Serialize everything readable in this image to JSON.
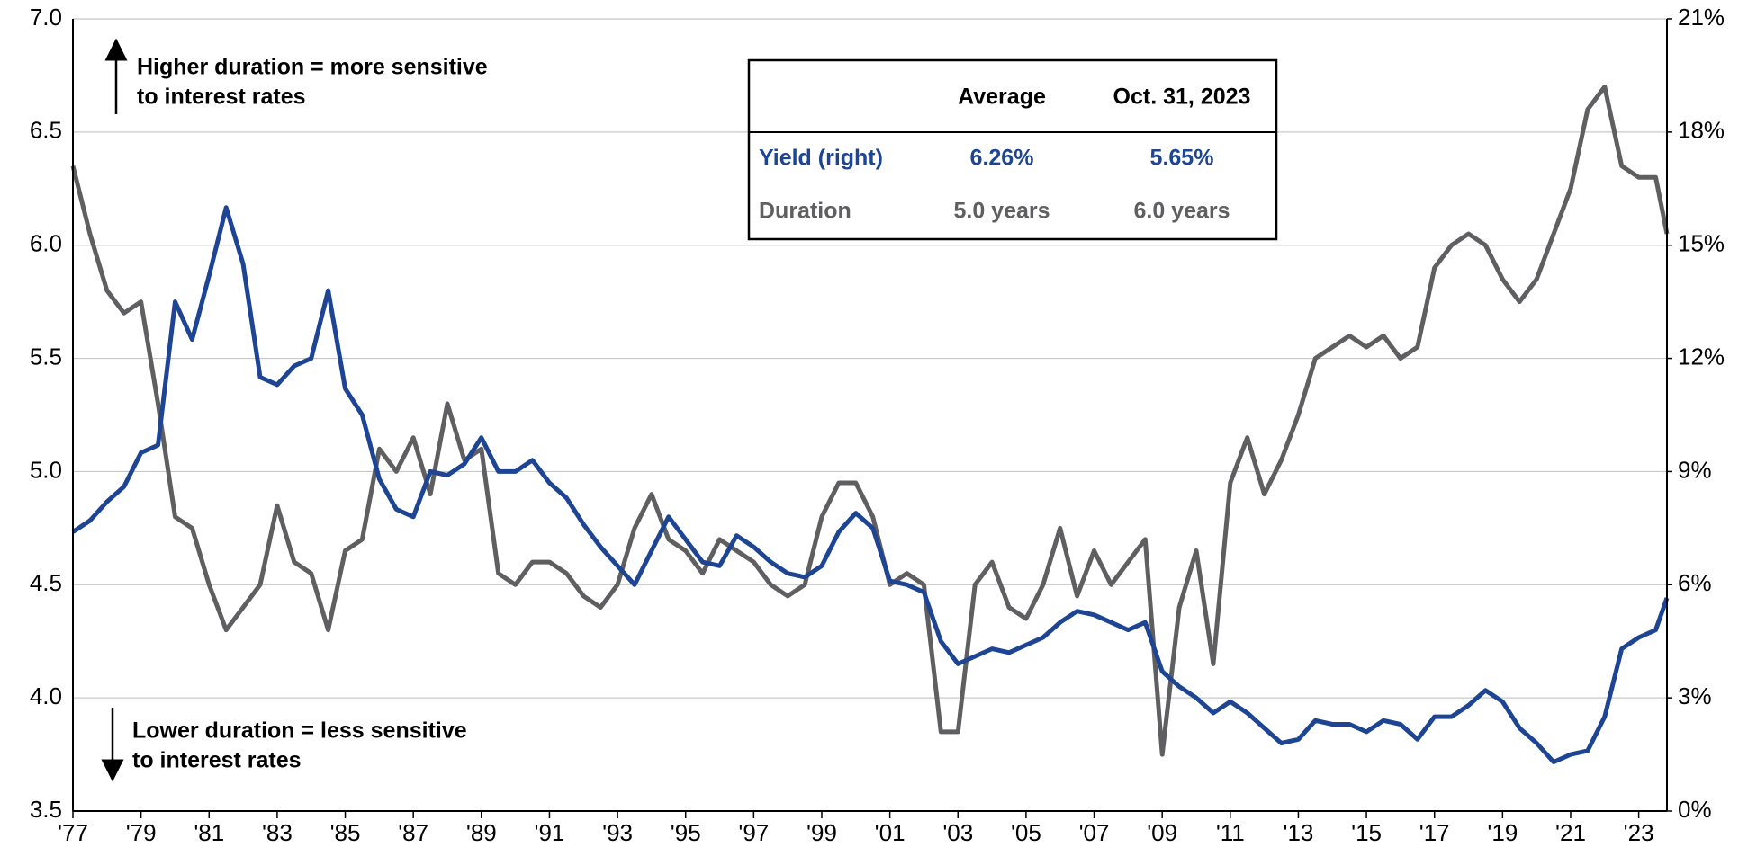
{
  "chart_data": {
    "type": "line",
    "x": [
      1977,
      1977.5,
      1978,
      1978.5,
      1979,
      1979.5,
      1980,
      1980.5,
      1981,
      1981.5,
      1982,
      1982.5,
      1983,
      1983.5,
      1984,
      1984.5,
      1985,
      1985.5,
      1986,
      1986.5,
      1987,
      1987.5,
      1988,
      1988.5,
      1989,
      1989.5,
      1990,
      1990.5,
      1991,
      1991.5,
      1992,
      1992.5,
      1993,
      1993.5,
      1994,
      1994.5,
      1995,
      1995.5,
      1996,
      1996.5,
      1997,
      1997.5,
      1998,
      1998.5,
      1999,
      1999.5,
      2000,
      2000.5,
      2001,
      2001.5,
      2002,
      2002.5,
      2003,
      2003.5,
      2004,
      2004.5,
      2005,
      2005.5,
      2006,
      2006.5,
      2007,
      2007.5,
      2008,
      2008.5,
      2009,
      2009.5,
      2010,
      2010.5,
      2011,
      2011.5,
      2012,
      2012.5,
      2013,
      2013.5,
      2014,
      2014.5,
      2015,
      2015.5,
      2016,
      2016.5,
      2017,
      2017.5,
      2018,
      2018.5,
      2019,
      2019.5,
      2020,
      2020.5,
      2021,
      2021.5,
      2022,
      2022.5,
      2023,
      2023.5,
      2023.83
    ],
    "xlim": [
      1977,
      2023.83
    ],
    "xticks": [
      {
        "value": 1977,
        "label": "'77"
      },
      {
        "value": 1979,
        "label": "'79"
      },
      {
        "value": 1981,
        "label": "'81"
      },
      {
        "value": 1983,
        "label": "'83"
      },
      {
        "value": 1985,
        "label": "'85"
      },
      {
        "value": 1987,
        "label": "'87"
      },
      {
        "value": 1989,
        "label": "'89"
      },
      {
        "value": 1991,
        "label": "'91"
      },
      {
        "value": 1993,
        "label": "'93"
      },
      {
        "value": 1995,
        "label": "'95"
      },
      {
        "value": 1997,
        "label": "'97"
      },
      {
        "value": 1999,
        "label": "'99"
      },
      {
        "value": 2001,
        "label": "'01"
      },
      {
        "value": 2003,
        "label": "'03"
      },
      {
        "value": 2005,
        "label": "'05"
      },
      {
        "value": 2007,
        "label": "'07"
      },
      {
        "value": 2009,
        "label": "'09"
      },
      {
        "value": 2011,
        "label": "'11"
      },
      {
        "value": 2013,
        "label": "'13"
      },
      {
        "value": 2015,
        "label": "'15"
      },
      {
        "value": 2017,
        "label": "'17"
      },
      {
        "value": 2019,
        "label": "'19"
      },
      {
        "value": 2021,
        "label": "'21"
      },
      {
        "value": 2023,
        "label": "'23"
      }
    ],
    "ylim": [
      3.5,
      7.0
    ],
    "yticks": [
      3.5,
      {
        "value": 4,
        "label": "4.0"
      },
      4.5,
      {
        "value": 5,
        "label": "5.0"
      },
      5.5,
      {
        "value": 6,
        "label": "6.0"
      },
      6.5,
      {
        "value": 7,
        "label": "7.0"
      }
    ],
    "y2lim": [
      0,
      21
    ],
    "y2ticks": [
      {
        "value": 0,
        "label": "0%"
      },
      {
        "value": 3,
        "label": "3%"
      },
      {
        "value": 6,
        "label": "6%"
      },
      {
        "value": 9,
        "label": "9%"
      },
      {
        "value": 12,
        "label": "12%"
      },
      {
        "value": 15,
        "label": "15%"
      },
      {
        "value": 18,
        "label": "18%"
      },
      {
        "value": 21,
        "label": "21%"
      }
    ],
    "grid": true,
    "series": [
      {
        "name": "Yield (right)",
        "color": "#1d4594",
        "axis": "y2",
        "values": [
          7.4,
          7.7,
          8.2,
          8.6,
          9.5,
          9.7,
          13.5,
          12.5,
          14.2,
          16.0,
          14.5,
          11.5,
          11.3,
          11.8,
          12.0,
          13.8,
          11.2,
          10.5,
          8.8,
          8.0,
          7.8,
          9.0,
          8.9,
          9.2,
          9.9,
          9.0,
          9.0,
          9.3,
          8.7,
          8.3,
          7.6,
          7.0,
          6.5,
          6.0,
          6.9,
          7.8,
          7.2,
          6.6,
          6.5,
          7.3,
          7.0,
          6.6,
          6.3,
          6.2,
          6.5,
          7.4,
          7.9,
          7.5,
          6.1,
          6.0,
          5.8,
          4.5,
          3.9,
          4.1,
          4.3,
          4.2,
          4.4,
          4.6,
          5.0,
          5.3,
          5.2,
          5.0,
          4.8,
          5.0,
          3.7,
          3.3,
          3.0,
          2.6,
          2.9,
          2.6,
          2.2,
          1.8,
          1.9,
          2.4,
          2.3,
          2.3,
          2.1,
          2.4,
          2.3,
          1.9,
          2.5,
          2.5,
          2.8,
          3.2,
          2.9,
          2.2,
          1.8,
          1.3,
          1.5,
          1.6,
          2.5,
          4.3,
          4.6,
          4.8,
          5.65
        ]
      },
      {
        "name": "Duration",
        "color": "#5f5f61",
        "values": [
          6.35,
          6.05,
          5.8,
          5.7,
          5.75,
          5.3,
          4.8,
          4.75,
          4.5,
          4.3,
          4.4,
          4.5,
          4.85,
          4.6,
          4.55,
          4.3,
          4.65,
          4.7,
          5.1,
          5.0,
          5.15,
          4.9,
          5.3,
          5.05,
          5.1,
          4.55,
          4.5,
          4.6,
          4.6,
          4.55,
          4.45,
          4.4,
          4.5,
          4.75,
          4.9,
          4.7,
          4.65,
          4.55,
          4.7,
          4.65,
          4.6,
          4.5,
          4.45,
          4.5,
          4.8,
          4.95,
          4.95,
          4.8,
          4.5,
          4.55,
          4.5,
          3.85,
          3.85,
          4.5,
          4.6,
          4.4,
          4.35,
          4.5,
          4.75,
          4.45,
          4.65,
          4.5,
          4.6,
          4.7,
          3.75,
          4.4,
          4.65,
          4.15,
          4.95,
          5.15,
          4.9,
          5.05,
          5.25,
          5.5,
          5.55,
          5.6,
          5.55,
          5.6,
          5.5,
          5.55,
          5.9,
          6.0,
          6.05,
          6.0,
          5.85,
          5.75,
          5.85,
          6.05,
          6.25,
          6.6,
          6.7,
          6.35,
          6.3,
          6.3,
          6.05
        ]
      }
    ],
    "table": {
      "header": [
        "Average",
        "Oct. 31, 2023"
      ],
      "rows": [
        [
          "6.26%",
          "5.65%"
        ],
        [
          "5.0 years",
          "6.0 years"
        ]
      ]
    },
    "annotations": [
      {
        "lines": [
          "Higher duration = more sensitive",
          "to interest rates"
        ]
      },
      {
        "lines": [
          "Lower duration = less sensitive",
          "to interest rates"
        ]
      }
    ]
  }
}
